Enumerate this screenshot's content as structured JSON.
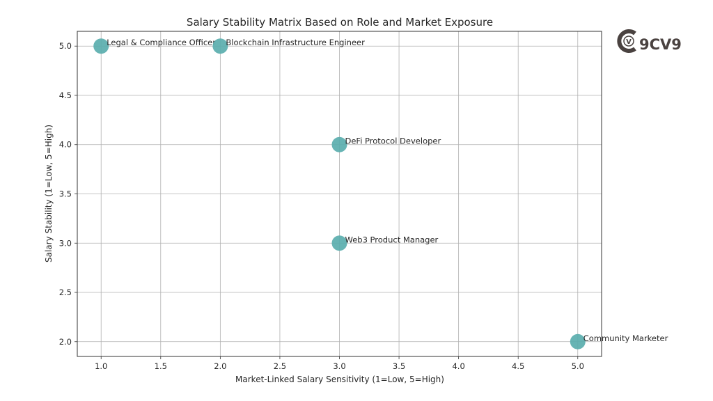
{
  "chart_data": {
    "type": "scatter",
    "title": "Salary Stability Matrix Based on Role and Market Exposure",
    "xlabel": "Market-Linked Salary Sensitivity (1=Low, 5=High)",
    "ylabel": "Salary Stability (1=Low, 5=High)",
    "xlim": [
      0.8,
      5.2
    ],
    "ylim": [
      1.85,
      5.15
    ],
    "xticks": [
      1.0,
      1.5,
      2.0,
      2.5,
      3.0,
      3.5,
      4.0,
      4.5,
      5.0
    ],
    "xtick_labels": [
      "1.0",
      "1.5",
      "2.0",
      "2.5",
      "3.0",
      "3.5",
      "4.0",
      "4.5",
      "5.0"
    ],
    "yticks": [
      2.0,
      2.5,
      3.0,
      3.5,
      4.0,
      4.5,
      5.0
    ],
    "ytick_labels": [
      "2.0",
      "2.5",
      "3.0",
      "3.5",
      "4.0",
      "4.5",
      "5.0"
    ],
    "grid": true,
    "legend": null,
    "marker_color": "#5aaeae",
    "points": [
      {
        "label": "Legal & Compliance Officer",
        "x": 1,
        "y": 5
      },
      {
        "label": "Blockchain Infrastructure Engineer",
        "x": 2,
        "y": 5
      },
      {
        "label": "DeFi Protocol Developer",
        "x": 3,
        "y": 4
      },
      {
        "label": "Web3 Product Manager",
        "x": 3,
        "y": 3
      },
      {
        "label": "Community Marketer",
        "x": 5,
        "y": 2
      }
    ]
  },
  "logo": {
    "text": "9CV9",
    "badge_letter": "V",
    "color": "#4a4240"
  }
}
